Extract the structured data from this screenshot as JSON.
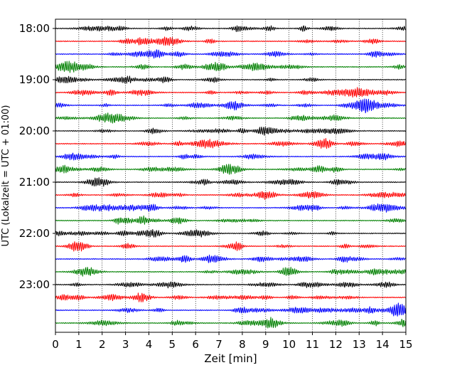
{
  "chart_data": {
    "type": "line",
    "title": "",
    "xlabel": "Zeit  [min]",
    "ylabel": "UTC (Lokalzeit = UTC + 01:00)",
    "xlim": [
      0,
      15
    ],
    "x_ticks": [
      "0",
      "1",
      "2",
      "3",
      "4",
      "5",
      "6",
      "7",
      "8",
      "9",
      "10",
      "11",
      "12",
      "13",
      "14",
      "15"
    ],
    "y_tick_labels": [
      "18:00",
      "19:00",
      "20:00",
      "21:00",
      "22:00",
      "23:00"
    ],
    "row_interval_minutes": 15,
    "row_colors": [
      "#000000",
      "#ff0000",
      "#0000ff",
      "#008000"
    ],
    "rows": [
      "18:00",
      "18:15",
      "18:30",
      "18:45",
      "19:00",
      "19:15",
      "19:30",
      "19:45",
      "20:00",
      "20:15",
      "20:30",
      "20:45",
      "21:00",
      "21:15",
      "21:30",
      "21:45",
      "22:00",
      "22:15",
      "22:30",
      "22:45",
      "23:00",
      "23:15",
      "23:30",
      "23:45"
    ],
    "grid": "vertical dotted lines at each minute"
  }
}
